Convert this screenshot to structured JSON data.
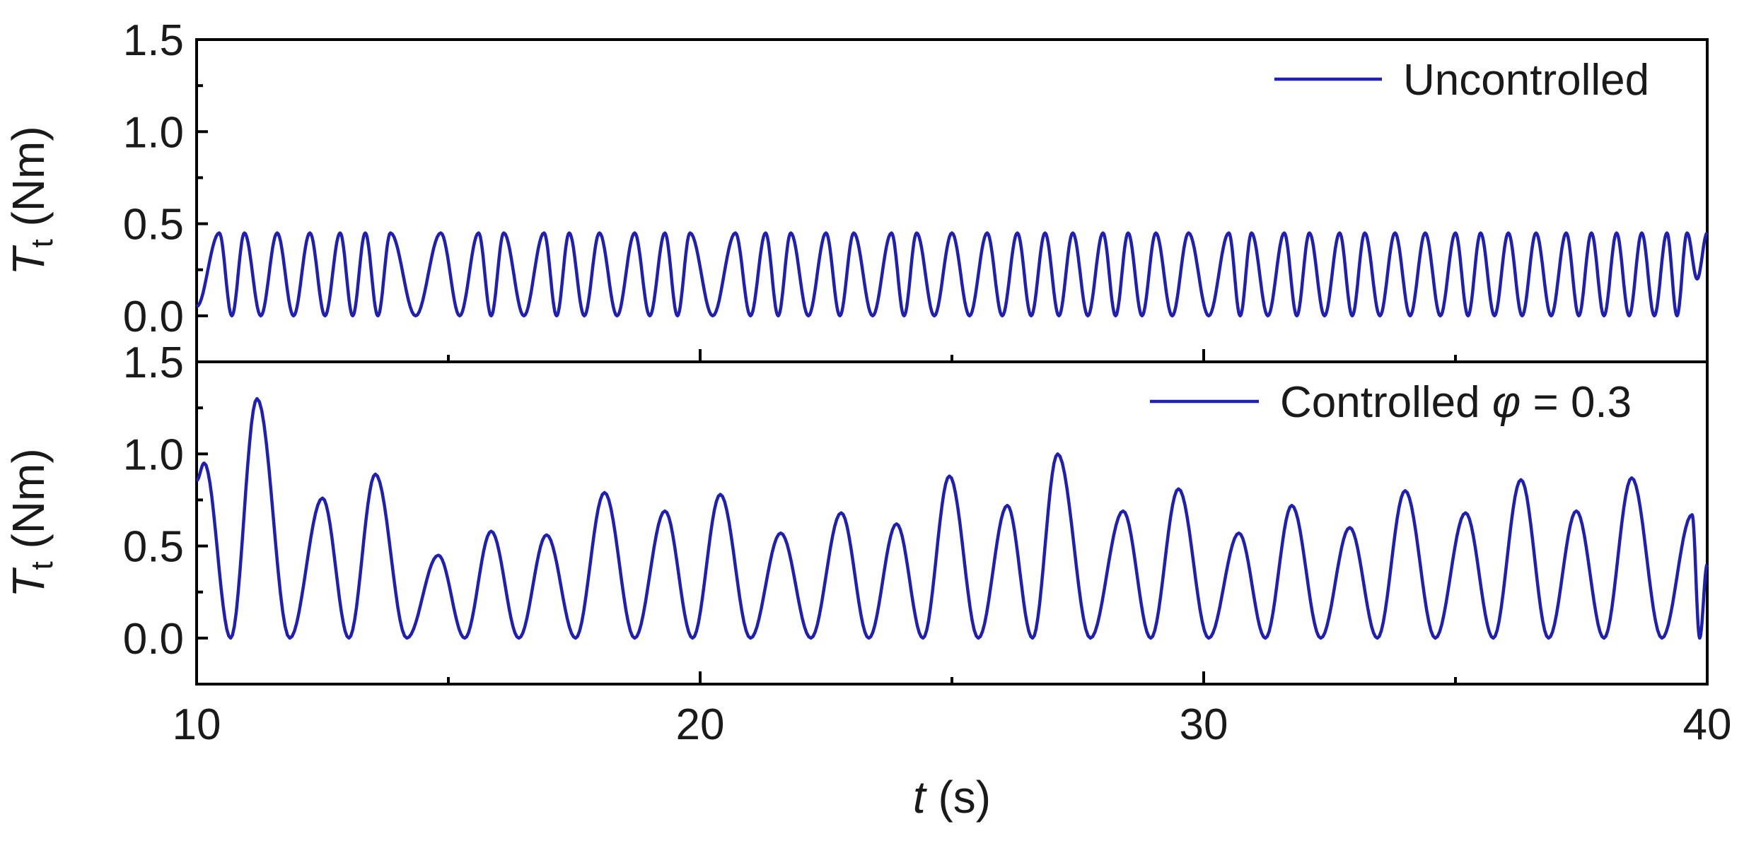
{
  "colors": {
    "line": "#1f1fb3",
    "axes": "#000000"
  },
  "chart_data": [
    {
      "type": "line",
      "panel": "top",
      "x_range": [
        10,
        40
      ],
      "ylim": [
        -0.25,
        1.5
      ],
      "yticks": [
        0.0,
        0.5,
        1.0,
        1.5
      ],
      "ytick_labels": [
        "0.0",
        "0.5",
        "1.0",
        "1.5"
      ],
      "ylabel_main": "T",
      "ylabel_sub": "t",
      "ylabel_unit": " (Nm)",
      "legend": {
        "placement": "top-right"
      },
      "series": [
        {
          "name": "Uncontrolled",
          "peaks": [
            {
              "t": 10.45,
              "v": 0.45
            },
            {
              "t": 10.95,
              "v": 0.45
            },
            {
              "t": 11.6,
              "v": 0.45
            },
            {
              "t": 12.25,
              "v": 0.45
            },
            {
              "t": 12.85,
              "v": 0.45
            },
            {
              "t": 13.35,
              "v": 0.45
            },
            {
              "t": 13.85,
              "v": 0.45
            },
            {
              "t": 14.85,
              "v": 0.45
            },
            {
              "t": 15.6,
              "v": 0.45
            },
            {
              "t": 16.1,
              "v": 0.45
            },
            {
              "t": 16.9,
              "v": 0.45
            },
            {
              "t": 17.4,
              "v": 0.45
            },
            {
              "t": 18.0,
              "v": 0.45
            },
            {
              "t": 18.7,
              "v": 0.45
            },
            {
              "t": 19.3,
              "v": 0.45
            },
            {
              "t": 19.8,
              "v": 0.45
            },
            {
              "t": 20.7,
              "v": 0.45
            },
            {
              "t": 21.3,
              "v": 0.45
            },
            {
              "t": 21.8,
              "v": 0.45
            },
            {
              "t": 22.5,
              "v": 0.45
            },
            {
              "t": 23.05,
              "v": 0.45
            },
            {
              "t": 23.8,
              "v": 0.45
            },
            {
              "t": 24.3,
              "v": 0.45
            },
            {
              "t": 25.0,
              "v": 0.45
            },
            {
              "t": 25.7,
              "v": 0.45
            },
            {
              "t": 26.3,
              "v": 0.45
            },
            {
              "t": 26.85,
              "v": 0.45
            },
            {
              "t": 27.4,
              "v": 0.45
            },
            {
              "t": 28.0,
              "v": 0.45
            },
            {
              "t": 28.5,
              "v": 0.45
            },
            {
              "t": 29.05,
              "v": 0.45
            },
            {
              "t": 29.7,
              "v": 0.45
            },
            {
              "t": 30.5,
              "v": 0.45
            },
            {
              "t": 30.95,
              "v": 0.45
            },
            {
              "t": 31.6,
              "v": 0.45
            },
            {
              "t": 32.1,
              "v": 0.45
            },
            {
              "t": 32.7,
              "v": 0.45
            },
            {
              "t": 33.2,
              "v": 0.45
            },
            {
              "t": 33.8,
              "v": 0.45
            },
            {
              "t": 34.4,
              "v": 0.45
            },
            {
              "t": 35.0,
              "v": 0.45
            },
            {
              "t": 35.5,
              "v": 0.45
            },
            {
              "t": 36.05,
              "v": 0.45
            },
            {
              "t": 36.6,
              "v": 0.45
            },
            {
              "t": 37.2,
              "v": 0.45
            },
            {
              "t": 37.7,
              "v": 0.45
            },
            {
              "t": 38.2,
              "v": 0.45
            },
            {
              "t": 38.7,
              "v": 0.45
            },
            {
              "t": 39.2,
              "v": 0.45
            },
            {
              "t": 39.6,
              "v": 0.45
            }
          ]
        }
      ]
    },
    {
      "type": "line",
      "panel": "bottom",
      "x_range": [
        10,
        40
      ],
      "xticks": [
        10,
        20,
        30,
        40
      ],
      "xtick_labels": [
        "10",
        "20",
        "30",
        "40"
      ],
      "ylim": [
        -0.25,
        1.5
      ],
      "yticks": [
        0.0,
        0.5,
        1.0,
        1.5
      ],
      "ytick_labels": [
        "0.0",
        "0.5",
        "1.0",
        "1.5"
      ],
      "ylabel_main": "T",
      "ylabel_sub": "t",
      "ylabel_unit": " (Nm)",
      "xlabel_main": "t",
      "xlabel_unit": " (s)",
      "legend": {
        "placement": "top-right"
      },
      "series": [
        {
          "name_prefix": "Controlled ",
          "name_symbol": "φ",
          "name_suffix": " = 0.3",
          "peaks": [
            {
              "t": 10.15,
              "v": 0.95
            },
            {
              "t": 11.2,
              "v": 1.3
            },
            {
              "t": 12.5,
              "v": 0.76
            },
            {
              "t": 13.55,
              "v": 0.89
            },
            {
              "t": 14.8,
              "v": 0.45
            },
            {
              "t": 15.85,
              "v": 0.58
            },
            {
              "t": 16.95,
              "v": 0.56
            },
            {
              "t": 18.1,
              "v": 0.79
            },
            {
              "t": 19.3,
              "v": 0.69
            },
            {
              "t": 20.4,
              "v": 0.78
            },
            {
              "t": 21.6,
              "v": 0.57
            },
            {
              "t": 22.8,
              "v": 0.68
            },
            {
              "t": 23.9,
              "v": 0.62
            },
            {
              "t": 24.95,
              "v": 0.88
            },
            {
              "t": 26.1,
              "v": 0.72
            },
            {
              "t": 27.1,
              "v": 1.0
            },
            {
              "t": 28.4,
              "v": 0.69
            },
            {
              "t": 29.5,
              "v": 0.81
            },
            {
              "t": 30.7,
              "v": 0.57
            },
            {
              "t": 31.75,
              "v": 0.72
            },
            {
              "t": 32.9,
              "v": 0.6
            },
            {
              "t": 34.0,
              "v": 0.8
            },
            {
              "t": 35.2,
              "v": 0.68
            },
            {
              "t": 36.3,
              "v": 0.86
            },
            {
              "t": 37.4,
              "v": 0.69
            },
            {
              "t": 38.5,
              "v": 0.87
            },
            {
              "t": 39.7,
              "v": 0.67
            }
          ]
        }
      ]
    }
  ]
}
